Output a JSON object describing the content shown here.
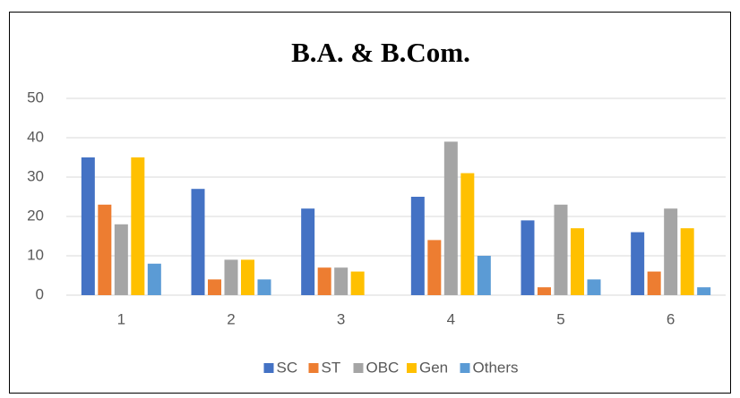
{
  "chart_data": {
    "type": "bar",
    "title": "B.A. & B.Com.",
    "categories": [
      "1",
      "2",
      "3",
      "4",
      "5",
      "6"
    ],
    "series": [
      {
        "name": "SC",
        "color": "#4472c4",
        "values": [
          35,
          27,
          22,
          25,
          19,
          16
        ]
      },
      {
        "name": "ST",
        "color": "#ed7d31",
        "values": [
          23,
          4,
          7,
          14,
          2,
          6
        ]
      },
      {
        "name": "OBC",
        "color": "#a5a5a5",
        "values": [
          18,
          9,
          7,
          39,
          23,
          22
        ]
      },
      {
        "name": "Gen",
        "color": "#ffc000",
        "values": [
          35,
          9,
          6,
          31,
          17,
          17
        ]
      },
      {
        "name": "Others",
        "color": "#5b9bd5",
        "values": [
          8,
          4,
          0,
          10,
          4,
          2
        ]
      }
    ],
    "ylim": [
      0,
      50
    ],
    "yticks": [
      0,
      10,
      20,
      30,
      40,
      50
    ],
    "grid": true,
    "legend": "bottom"
  }
}
